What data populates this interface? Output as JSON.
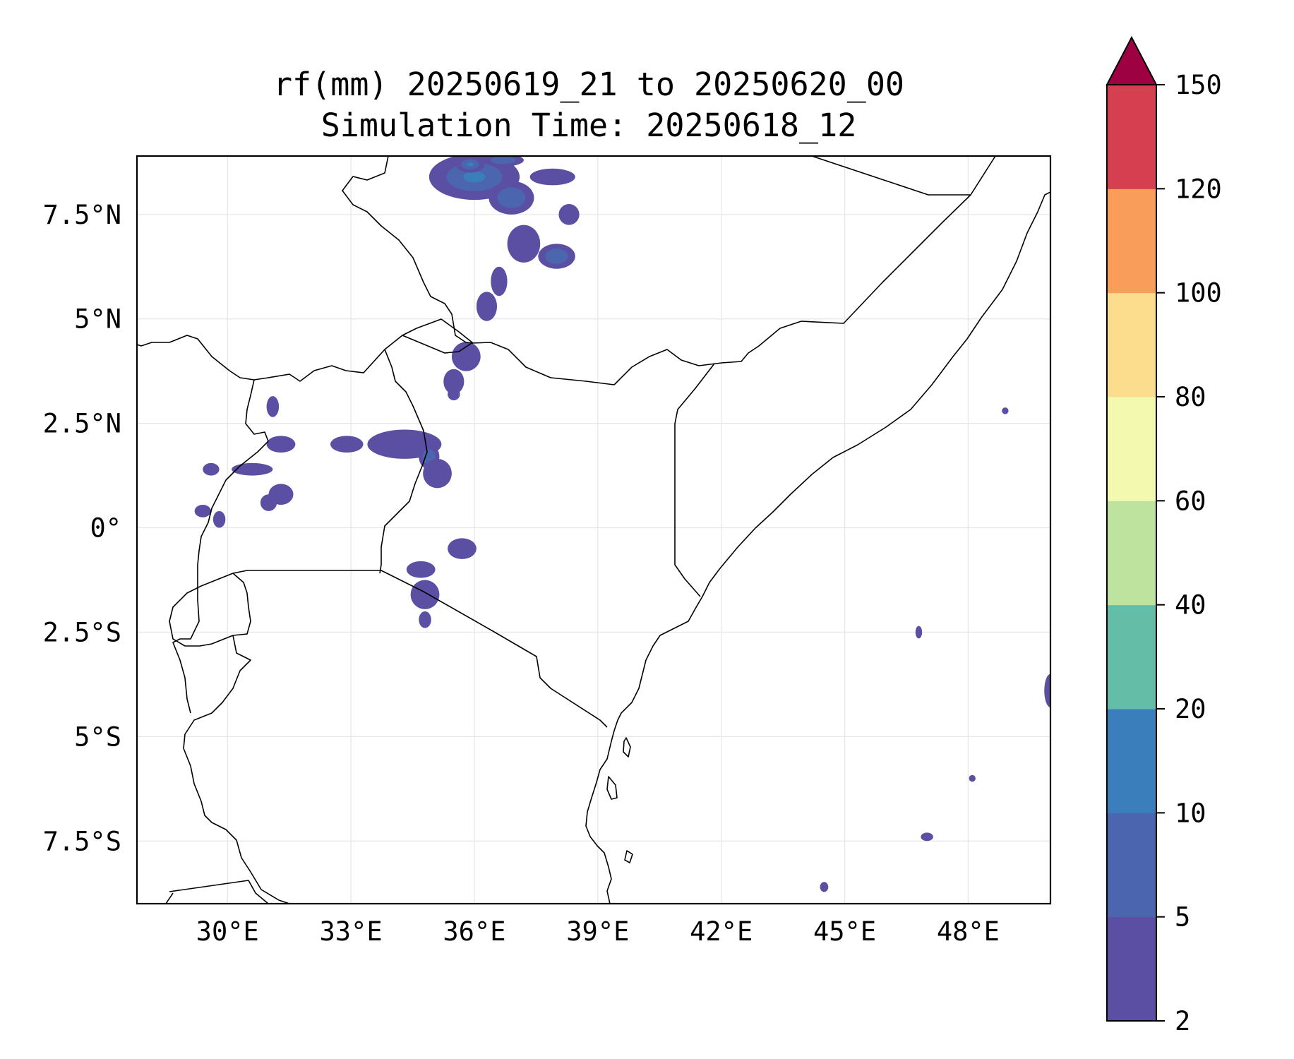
{
  "title": {
    "line1": "rf(mm) 20250619_21 to 20250620_00",
    "line2": "Simulation Time: 20250618_12"
  },
  "map": {
    "lon_range": [
      27.8,
      50.0
    ],
    "lat_range": [
      -9.0,
      8.9
    ],
    "lon_ticks": [
      {
        "value": 30,
        "label": "30°E"
      },
      {
        "value": 33,
        "label": "33°E"
      },
      {
        "value": 36,
        "label": "36°E"
      },
      {
        "value": 39,
        "label": "39°E"
      },
      {
        "value": 42,
        "label": "42°E"
      },
      {
        "value": 45,
        "label": "45°E"
      },
      {
        "value": 48,
        "label": "48°E"
      }
    ],
    "lat_ticks": [
      {
        "value": 7.5,
        "label": "7.5°N"
      },
      {
        "value": 5,
        "label": "5°N"
      },
      {
        "value": 2.5,
        "label": "2.5°N"
      },
      {
        "value": 0,
        "label": "0°"
      },
      {
        "value": -2.5,
        "label": "2.5°S"
      },
      {
        "value": -5,
        "label": "5°S"
      },
      {
        "value": -7.5,
        "label": "7.5°S"
      }
    ],
    "gridlines": true
  },
  "colorbar": {
    "levels": [
      {
        "label": "2"
      },
      {
        "label": "5"
      },
      {
        "label": "10"
      },
      {
        "label": "20"
      },
      {
        "label": "40"
      },
      {
        "label": "60"
      },
      {
        "label": "80"
      },
      {
        "label": "100"
      },
      {
        "label": "120"
      },
      {
        "label": "150"
      }
    ],
    "colors": [
      "#5a4fa2",
      "#4b65ae",
      "#3a7fbb",
      "#64bea7",
      "#bde39e",
      "#f3f9ae",
      "#fbdd8d",
      "#f99d5a",
      "#d53f50"
    ],
    "extend_color": "#9e0142",
    "extend": "max"
  },
  "chart_data": {
    "type": "filled-contour map",
    "variable": "rf(mm)",
    "period": "20250619_21 to 20250620_00",
    "simulation_time": "20250618_12",
    "rain_cells": [
      {
        "lon": 36.0,
        "lat": 8.4,
        "rx": 1.1,
        "ry": 0.55,
        "level": 2
      },
      {
        "lon": 35.9,
        "lat": 8.7,
        "rx": 0.35,
        "ry": 0.2,
        "level": 3
      },
      {
        "lon": 36.9,
        "lat": 7.9,
        "rx": 0.55,
        "ry": 0.4,
        "level": 1
      },
      {
        "lon": 36.7,
        "lat": 8.8,
        "rx": 0.5,
        "ry": 0.15,
        "level": 1
      },
      {
        "lon": 37.9,
        "lat": 8.4,
        "rx": 0.55,
        "ry": 0.2,
        "level": 0
      },
      {
        "lon": 38.3,
        "lat": 7.5,
        "rx": 0.25,
        "ry": 0.25,
        "level": 0
      },
      {
        "lon": 38.0,
        "lat": 6.5,
        "rx": 0.45,
        "ry": 0.3,
        "level": 1
      },
      {
        "lon": 37.2,
        "lat": 6.8,
        "rx": 0.4,
        "ry": 0.45,
        "level": 0
      },
      {
        "lon": 36.6,
        "lat": 5.9,
        "rx": 0.2,
        "ry": 0.35,
        "level": 0
      },
      {
        "lon": 36.3,
        "lat": 5.3,
        "rx": 0.25,
        "ry": 0.35,
        "level": 0
      },
      {
        "lon": 35.8,
        "lat": 4.1,
        "rx": 0.35,
        "ry": 0.35,
        "level": 0
      },
      {
        "lon": 35.5,
        "lat": 3.5,
        "rx": 0.25,
        "ry": 0.3,
        "level": 0
      },
      {
        "lon": 35.5,
        "lat": 3.2,
        "rx": 0.15,
        "ry": 0.15,
        "level": 0
      },
      {
        "lon": 34.3,
        "lat": 2.0,
        "rx": 0.9,
        "ry": 0.35,
        "level": 0
      },
      {
        "lon": 32.9,
        "lat": 2.0,
        "rx": 0.4,
        "ry": 0.2,
        "level": 0
      },
      {
        "lon": 34.9,
        "lat": 1.7,
        "rx": 0.25,
        "ry": 0.3,
        "level": 1
      },
      {
        "lon": 35.1,
        "lat": 1.3,
        "rx": 0.35,
        "ry": 0.35,
        "level": 0
      },
      {
        "lon": 31.3,
        "lat": 2.0,
        "rx": 0.35,
        "ry": 0.2,
        "level": 0
      },
      {
        "lon": 31.1,
        "lat": 2.9,
        "rx": 0.15,
        "ry": 0.25,
        "level": 0
      },
      {
        "lon": 30.6,
        "lat": 1.4,
        "rx": 0.5,
        "ry": 0.15,
        "level": 0
      },
      {
        "lon": 29.4,
        "lat": 0.4,
        "rx": 0.2,
        "ry": 0.15,
        "level": 0
      },
      {
        "lon": 29.6,
        "lat": 1.4,
        "rx": 0.2,
        "ry": 0.15,
        "level": 0
      },
      {
        "lon": 31.3,
        "lat": 0.8,
        "rx": 0.3,
        "ry": 0.25,
        "level": 0
      },
      {
        "lon": 31.0,
        "lat": 0.6,
        "rx": 0.2,
        "ry": 0.2,
        "level": 0
      },
      {
        "lon": 29.8,
        "lat": 0.2,
        "rx": 0.15,
        "ry": 0.2,
        "level": 0
      },
      {
        "lon": 35.7,
        "lat": -0.5,
        "rx": 0.35,
        "ry": 0.25,
        "level": 0
      },
      {
        "lon": 34.7,
        "lat": -1.0,
        "rx": 0.35,
        "ry": 0.2,
        "level": 0
      },
      {
        "lon": 34.8,
        "lat": -1.6,
        "rx": 0.35,
        "ry": 0.35,
        "level": 0
      },
      {
        "lon": 34.8,
        "lat": -2.2,
        "rx": 0.15,
        "ry": 0.2,
        "level": 0
      },
      {
        "lon": 47.0,
        "lat": -7.4,
        "rx": 0.15,
        "ry": 0.1,
        "level": 0
      },
      {
        "lon": 50.0,
        "lat": -3.9,
        "rx": 0.15,
        "ry": 0.4,
        "level": 0
      },
      {
        "lon": 46.8,
        "lat": -2.5,
        "rx": 0.08,
        "ry": 0.15,
        "level": 0
      },
      {
        "lon": 44.5,
        "lat": -8.6,
        "rx": 0.1,
        "ry": 0.12,
        "level": 0
      },
      {
        "lon": 48.1,
        "lat": -6.0,
        "rx": 0.08,
        "ry": 0.08,
        "level": 0
      },
      {
        "lon": 48.9,
        "lat": 2.8,
        "rx": 0.08,
        "ry": 0.08,
        "level": 0
      }
    ]
  }
}
